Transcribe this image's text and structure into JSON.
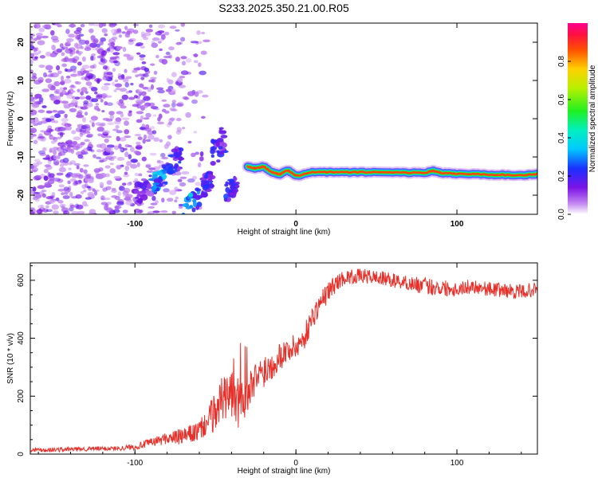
{
  "title": "S233.2025.350.21.00.R05",
  "colors": {
    "snr_line": "#e8302a",
    "ridge": "#d9182e",
    "axis": "#000000"
  },
  "chart_data": [
    {
      "type": "heatmap",
      "xlabel": "Height of straight line (km)",
      "ylabel": "Frequency (Hz)",
      "xlim": [
        -165,
        150
      ],
      "ylim": [
        -25,
        25
      ],
      "x_ticks": [
        -100,
        0,
        100
      ],
      "y_ticks": [
        -20,
        -10,
        0,
        10,
        20
      ],
      "colorbar": {
        "label": "Normalized spectral amplitude",
        "range": [
          0,
          1
        ],
        "ticks": [
          0.0,
          0.2,
          0.4,
          0.6,
          0.8
        ],
        "colormap": "white-purple-blue-cyan-green-yellow-red-magenta"
      },
      "ridge": {
        "x": [
          -30,
          -25,
          -20,
          -15,
          -10,
          -5,
          0,
          10,
          20,
          40,
          60,
          80,
          85,
          90,
          100,
          120,
          140,
          150
        ],
        "y": [
          -12.5,
          -13,
          -12.5,
          -14,
          -14.5,
          -13.5,
          -15,
          -14,
          -14,
          -14,
          -14,
          -14.2,
          -13.6,
          -14.2,
          -14.4,
          -14.6,
          -14.8,
          -14.5
        ]
      },
      "blobs": [
        {
          "x": -95,
          "y": -19,
          "w": 10,
          "h": 6,
          "v": 0.15
        },
        {
          "x": -85,
          "y": -16,
          "w": 10,
          "h": 5,
          "v": 0.3
        },
        {
          "x": -75,
          "y": -11,
          "w": 8,
          "h": 6,
          "v": 0.2
        },
        {
          "x": -65,
          "y": -22,
          "w": 10,
          "h": 5,
          "v": 0.3
        },
        {
          "x": -55,
          "y": -17,
          "w": 6,
          "h": 5,
          "v": 0.2
        },
        {
          "x": -48,
          "y": -7,
          "w": 8,
          "h": 8,
          "v": 0.18
        },
        {
          "x": -40,
          "y": -18,
          "w": 8,
          "h": 5,
          "v": 0.2
        }
      ]
    },
    {
      "type": "line",
      "xlabel": "Height of straight line (km)",
      "ylabel": "SNR (10 * v/v)",
      "xlim": [
        -165,
        150
      ],
      "ylim": [
        0,
        660
      ],
      "x_ticks": [
        -100,
        0,
        100
      ],
      "y_ticks": [
        0,
        200,
        400,
        600
      ],
      "series": [
        {
          "x": [
            -165,
            -150,
            -130,
            -110,
            -100,
            -90,
            -80,
            -70,
            -60,
            -55,
            -50,
            -45,
            -40,
            -35,
            -30,
            -25,
            -20,
            -15,
            -10,
            -5,
            0,
            5,
            10,
            15,
            20,
            25,
            30,
            40,
            50,
            60,
            70,
            80,
            90,
            100,
            110,
            120,
            130,
            140,
            150
          ],
          "y": [
            15,
            15,
            18,
            20,
            25,
            40,
            55,
            60,
            80,
            110,
            150,
            200,
            230,
            200,
            210,
            260,
            290,
            310,
            340,
            360,
            370,
            400,
            470,
            520,
            560,
            590,
            610,
            615,
            610,
            600,
            590,
            580,
            575,
            570,
            580,
            570,
            565,
            560,
            570
          ],
          "amp": [
            8,
            8,
            8,
            8,
            10,
            15,
            20,
            30,
            35,
            50,
            70,
            100,
            110,
            120,
            60,
            60,
            60,
            55,
            50,
            45,
            45,
            45,
            40,
            40,
            35,
            30,
            25,
            25,
            25,
            25,
            25,
            30,
            30,
            25,
            25,
            25,
            25,
            25,
            25
          ]
        }
      ]
    }
  ]
}
